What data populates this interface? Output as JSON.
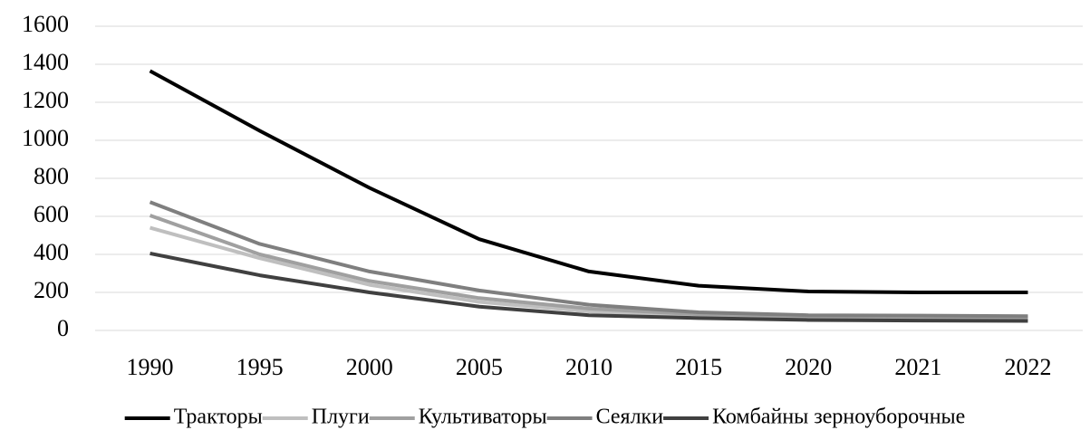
{
  "chart_data": {
    "type": "line",
    "categories": [
      "1990",
      "1995",
      "2000",
      "2005",
      "2010",
      "2015",
      "2020",
      "2021",
      "2022"
    ],
    "series": [
      {
        "name": "Тракторы",
        "color": "#000000",
        "values": [
          1365,
          1050,
          750,
          480,
          310,
          235,
          205,
          200,
          200
        ]
      },
      {
        "name": "Плуги",
        "color": "#bfbfbf",
        "values": [
          540,
          380,
          240,
          150,
          100,
          75,
          65,
          62,
          60
        ]
      },
      {
        "name": "Культиваторы",
        "color": "#a0a0a0",
        "values": [
          605,
          400,
          260,
          170,
          115,
          85,
          75,
          72,
          70
        ]
      },
      {
        "name": "Сеялки",
        "color": "#7f7f7f",
        "values": [
          675,
          455,
          310,
          210,
          135,
          95,
          80,
          78,
          75
        ]
      },
      {
        "name": "Комбайны зерноуборочные",
        "color": "#404040",
        "values": [
          405,
          290,
          200,
          125,
          80,
          65,
          55,
          52,
          50
        ]
      }
    ],
    "ylim": [
      0,
      1600
    ],
    "yticks": [
      0,
      200,
      400,
      600,
      800,
      1000,
      1200,
      1400,
      1600
    ],
    "grid": true,
    "legend": "bottom"
  }
}
